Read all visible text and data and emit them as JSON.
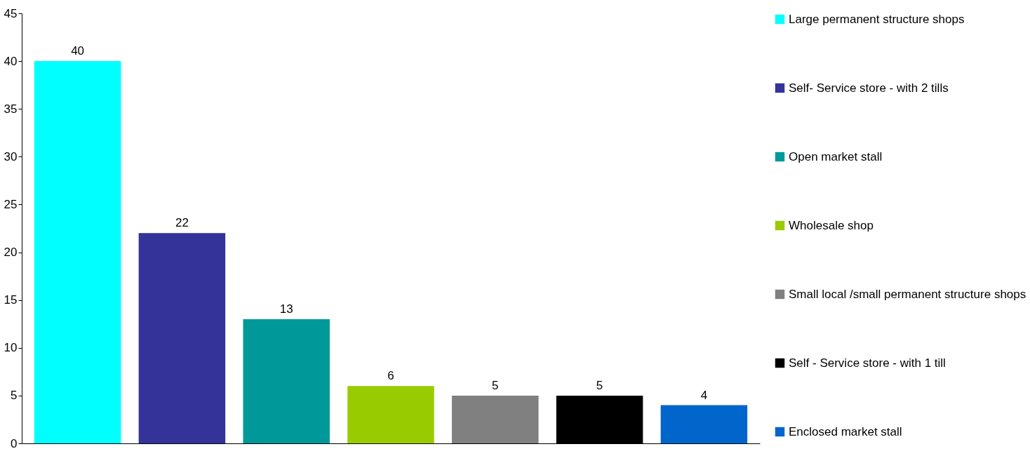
{
  "chart_data": {
    "type": "bar",
    "categories": [
      null,
      null,
      null,
      null,
      null,
      null,
      null
    ],
    "series": [
      {
        "name": "Large permanent structure shops",
        "color": "#00ffff",
        "values": [
          40,
          null,
          null,
          null,
          null,
          null,
          null
        ]
      },
      {
        "name": "Self- Service store - with 2 tills",
        "color": "#333399",
        "values": [
          null,
          22,
          null,
          null,
          null,
          null,
          null
        ]
      },
      {
        "name": "Open market stall",
        "color": "#009999",
        "values": [
          null,
          null,
          13,
          null,
          null,
          null,
          null
        ]
      },
      {
        "name": "Wholesale shop",
        "color": "#99cc00",
        "values": [
          null,
          null,
          null,
          6,
          null,
          null,
          null
        ]
      },
      {
        "name": "Small local /small permanent structure shops",
        "color": "#808080",
        "values": [
          null,
          null,
          null,
          null,
          5,
          null,
          null
        ]
      },
      {
        "name": "Self - Service store - with 1 till",
        "color": "#000000",
        "values": [
          null,
          null,
          null,
          null,
          null,
          5,
          null
        ]
      },
      {
        "name": "Enclosed market stall",
        "color": "#0066cc",
        "values": [
          null,
          null,
          null,
          null,
          null,
          null,
          4
        ]
      }
    ],
    "ylim": [
      0,
      45
    ],
    "yticks": [
      0,
      5,
      10,
      15,
      20,
      25,
      30,
      35,
      40,
      45
    ],
    "grid": false,
    "legend": "right",
    "data_labels": true
  }
}
